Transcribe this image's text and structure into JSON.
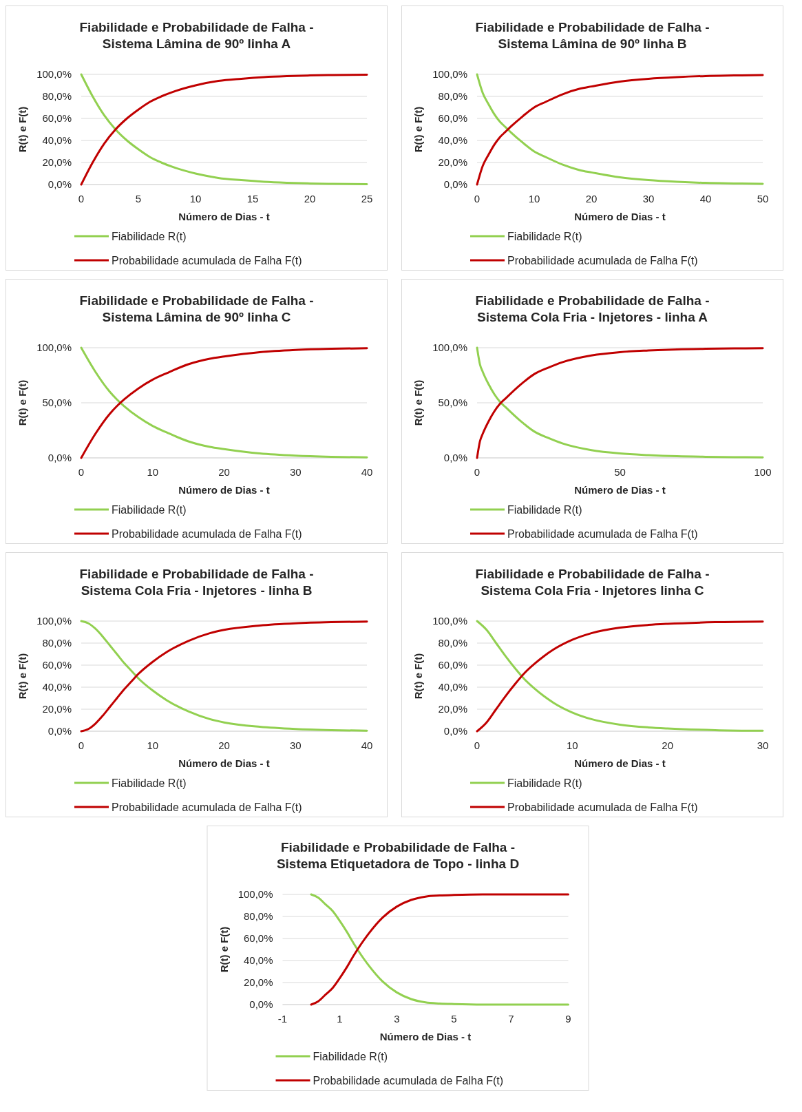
{
  "chart_data": [
    {
      "type": "line",
      "title": "Fiabilidade e Probabilidade de Falha -\nSistema Lâmina de 90º linha A",
      "xlabel": "Número de Dias - t",
      "ylabel": "R(t) e F(t)",
      "x": [
        0,
        1,
        2,
        3,
        4,
        5,
        6,
        7,
        8,
        10,
        12,
        14,
        16,
        18,
        20,
        22,
        25
      ],
      "xlim": [
        0,
        25
      ],
      "xticks": [
        0,
        5,
        10,
        15,
        20,
        25
      ],
      "ylim": [
        0,
        100
      ],
      "yticks": [
        {
          "value": 0,
          "label": "0,0%"
        },
        {
          "value": 20,
          "label": "20,0%"
        },
        {
          "value": 40,
          "label": "40,0%"
        },
        {
          "value": 60,
          "label": "60,0%"
        },
        {
          "value": 80,
          "label": "80,0%"
        },
        {
          "value": 100,
          "label": "100,0%"
        }
      ],
      "grid": "y",
      "legend": "bottom",
      "marker": "none",
      "line_style": "solid",
      "series": [
        {
          "name": "Fiabilidade R(t)",
          "color": "#92d050",
          "values": [
            100,
            80,
            63,
            50,
            40,
            32,
            25,
            20,
            16,
            10,
            6,
            4,
            2.5,
            1.6,
            1,
            0.6,
            0.3
          ]
        },
        {
          "name": "Probabilidade acumulada de Falha F(t)",
          "color": "#c00000",
          "values": [
            0,
            20,
            37,
            50,
            60,
            68,
            75,
            80,
            84,
            90,
            94,
            96,
            97.5,
            98.4,
            99,
            99.4,
            99.7
          ]
        }
      ]
    },
    {
      "type": "line",
      "title": "Fiabilidade e Probabilidade de Falha -\nSistema Lâmina de 90º linha B",
      "xlabel": "Número de Dias - t",
      "ylabel": "R(t) e F(t)",
      "x": [
        0,
        1,
        2,
        3,
        4,
        5,
        6,
        8,
        10,
        12,
        15,
        18,
        20,
        25,
        30,
        35,
        40,
        45,
        50
      ],
      "xlim": [
        0,
        50
      ],
      "xticks": [
        0,
        10,
        20,
        30,
        40,
        50
      ],
      "ylim": [
        0,
        100
      ],
      "yticks": [
        {
          "value": 0,
          "label": "0,0%"
        },
        {
          "value": 20,
          "label": "20,0%"
        },
        {
          "value": 40,
          "label": "40,0%"
        },
        {
          "value": 60,
          "label": "60,0%"
        },
        {
          "value": 80,
          "label": "80,0%"
        },
        {
          "value": 100,
          "label": "100,0%"
        }
      ],
      "grid": "y",
      "legend": "bottom",
      "marker": "none",
      "line_style": "solid",
      "series": [
        {
          "name": "Fiabilidade R(t)",
          "color": "#92d050",
          "values": [
            100,
            83,
            73,
            64,
            57,
            52,
            47,
            38,
            30,
            25,
            18,
            13,
            11,
            6.5,
            4,
            2.5,
            1.5,
            1,
            0.6
          ]
        },
        {
          "name": "Probabilidade acumulada de Falha F(t)",
          "color": "#c00000",
          "values": [
            0,
            17,
            27,
            36,
            43,
            48,
            53,
            62,
            70,
            75,
            82,
            87,
            89,
            93.5,
            96,
            97.5,
            98.5,
            99,
            99.4
          ]
        }
      ]
    },
    {
      "type": "line",
      "title": "Fiabilidade e Probabilidade de Falha -\nSistema Lâmina de 90º linha C",
      "xlabel": "Número de Dias - t",
      "ylabel": "R(t) e F(t)",
      "x": [
        0,
        2,
        4,
        5,
        6,
        8,
        10,
        12,
        15,
        18,
        20,
        25,
        30,
        35,
        40
      ],
      "xlim": [
        0,
        40
      ],
      "xticks": [
        0,
        10,
        20,
        30,
        40
      ],
      "ylim": [
        0,
        100
      ],
      "yticks": [
        {
          "value": 0,
          "label": "0,0%"
        },
        {
          "value": 50,
          "label": "50,0%"
        },
        {
          "value": 100,
          "label": "100,0%"
        }
      ],
      "grid": "y",
      "legend": "bottom",
      "marker": "none",
      "line_style": "solid",
      "series": [
        {
          "name": "Fiabilidade R(t)",
          "color": "#92d050",
          "values": [
            100,
            78,
            60,
            53,
            47,
            37,
            29,
            23,
            15,
            10,
            8,
            4,
            2,
            1,
            0.5
          ]
        },
        {
          "name": "Probabilidade acumulada de Falha F(t)",
          "color": "#c00000",
          "values": [
            0,
            22,
            40,
            47,
            53,
            63,
            71,
            77,
            85,
            90,
            92,
            96,
            98,
            99,
            99.5
          ]
        }
      ]
    },
    {
      "type": "line",
      "title": "Fiabilidade e Probabilidade de Falha -\nSistema Cola Fria - Injetores - linha A",
      "xlabel": "Número de Dias - t",
      "ylabel": "R(t) e F(t)",
      "x": [
        0,
        1,
        2,
        4,
        6,
        8,
        10,
        15,
        20,
        25,
        30,
        40,
        50,
        60,
        70,
        80,
        90,
        100
      ],
      "xlim": [
        0,
        100
      ],
      "xticks": [
        0,
        50,
        100
      ],
      "ylim": [
        0,
        100
      ],
      "yticks": [
        {
          "value": 0,
          "label": "0,0%"
        },
        {
          "value": 50,
          "label": "50,0%"
        },
        {
          "value": 100,
          "label": "100,0%"
        }
      ],
      "grid": "y",
      "legend": "bottom",
      "marker": "none",
      "line_style": "solid",
      "series": [
        {
          "name": "Fiabilidade R(t)",
          "color": "#92d050",
          "values": [
            100,
            85,
            78,
            67,
            58,
            51,
            46,
            34,
            24,
            18,
            13,
            7,
            4,
            2.5,
            1.5,
            1,
            0.7,
            0.5
          ]
        },
        {
          "name": "Probabilidade acumulada de Falha F(t)",
          "color": "#c00000",
          "values": [
            0,
            15,
            22,
            33,
            42,
            49,
            54,
            66,
            76,
            82,
            87,
            93,
            96,
            97.5,
            98.5,
            99,
            99.3,
            99.5
          ]
        }
      ]
    },
    {
      "type": "line",
      "title": "Fiabilidade e Probabilidade de Falha -\nSistema Cola Fria - Injetores - linha B",
      "xlabel": "Número de Dias - t",
      "ylabel": "R(t) e F(t)",
      "x": [
        0,
        1,
        2,
        3,
        4,
        5,
        6,
        7,
        8,
        10,
        12,
        15,
        18,
        20,
        25,
        30,
        35,
        40
      ],
      "xlim": [
        0,
        40
      ],
      "xticks": [
        0,
        10,
        20,
        30,
        40
      ],
      "ylim": [
        0,
        100
      ],
      "yticks": [
        {
          "value": 0,
          "label": "0,0%"
        },
        {
          "value": 20,
          "label": "20,0%"
        },
        {
          "value": 40,
          "label": "40,0%"
        },
        {
          "value": 60,
          "label": "60,0%"
        },
        {
          "value": 80,
          "label": "80,0%"
        },
        {
          "value": 100,
          "label": "100,0%"
        }
      ],
      "grid": "y",
      "legend": "bottom",
      "marker": "none",
      "line_style": "solid",
      "series": [
        {
          "name": "Fiabilidade R(t)",
          "color": "#92d050",
          "values": [
            100,
            98,
            93,
            86,
            78,
            70,
            62,
            55,
            48,
            37,
            28,
            18,
            11,
            8,
            4,
            2,
            1,
            0.5
          ]
        },
        {
          "name": "Probabilidade acumulada de Falha F(t)",
          "color": "#c00000",
          "values": [
            0,
            2,
            7,
            14,
            22,
            30,
            38,
            45,
            52,
            63,
            72,
            82,
            89,
            92,
            96,
            98,
            99,
            99.5
          ]
        }
      ]
    },
    {
      "type": "line",
      "title": "Fiabilidade e Probabilidade de Falha -\nSistema Cola Fria - Injetores linha C",
      "xlabel": "Número de Dias - t",
      "ylabel": "R(t) e F(t)",
      "x": [
        0,
        1,
        2,
        3,
        4,
        5,
        6,
        7,
        8,
        10,
        12,
        15,
        18,
        20,
        25,
        30
      ],
      "xlim": [
        0,
        30
      ],
      "xticks": [
        0,
        10,
        20,
        30
      ],
      "ylim": [
        0,
        100
      ],
      "yticks": [
        {
          "value": 0,
          "label": "0,0%"
        },
        {
          "value": 20,
          "label": "20,0%"
        },
        {
          "value": 40,
          "label": "40,0%"
        },
        {
          "value": 60,
          "label": "60,0%"
        },
        {
          "value": 80,
          "label": "80,0%"
        },
        {
          "value": 100,
          "label": "100,0%"
        }
      ],
      "grid": "y",
      "legend": "bottom",
      "marker": "none",
      "line_style": "solid",
      "series": [
        {
          "name": "Fiabilidade R(t)",
          "color": "#92d050",
          "values": [
            100,
            92,
            80,
            68,
            57,
            47,
            39,
            32,
            26,
            17,
            11,
            6,
            3.5,
            2.5,
            1,
            0.4
          ]
        },
        {
          "name": "Probabilidade acumulada de Falha F(t)",
          "color": "#c00000",
          "values": [
            0,
            8,
            20,
            32,
            43,
            53,
            61,
            68,
            74,
            83,
            89,
            94,
            96.5,
            97.5,
            99,
            99.6
          ]
        }
      ]
    },
    {
      "type": "line",
      "title": "Fiabilidade e Probabilidade de Falha -\nSistema Etiquetadora de Topo - linha D",
      "xlabel": "Número de Dias - t",
      "ylabel": "R(t) e F(t)",
      "x": [
        0,
        0.25,
        0.5,
        0.75,
        1,
        1.25,
        1.5,
        1.75,
        2,
        2.5,
        3,
        3.5,
        4,
        4.5,
        5,
        6,
        7,
        8,
        9
      ],
      "xlim": [
        -1,
        9
      ],
      "xticks": [
        -1,
        1,
        3,
        5,
        7,
        9
      ],
      "ylim": [
        0,
        100
      ],
      "yticks": [
        {
          "value": 0,
          "label": "0,0%"
        },
        {
          "value": 20,
          "label": "20,0%"
        },
        {
          "value": 40,
          "label": "40,0%"
        },
        {
          "value": 60,
          "label": "60,0%"
        },
        {
          "value": 80,
          "label": "80,0%"
        },
        {
          "value": 100,
          "label": "100,0%"
        }
      ],
      "grid": "y",
      "legend": "bottom",
      "marker": "none",
      "line_style": "solid",
      "series": [
        {
          "name": "Fiabilidade R(t)",
          "color": "#92d050",
          "values": [
            100,
            97,
            91,
            85,
            76,
            66,
            55,
            45,
            36,
            21,
            11,
            5,
            2,
            1,
            0.5,
            0,
            0,
            0,
            0
          ]
        },
        {
          "name": "Probabilidade acumulada de Falha F(t)",
          "color": "#c00000",
          "values": [
            0,
            3,
            9,
            15,
            24,
            34,
            45,
            55,
            64,
            79,
            89,
            95,
            98,
            99,
            99.5,
            100,
            100,
            100,
            100
          ]
        }
      ]
    }
  ]
}
